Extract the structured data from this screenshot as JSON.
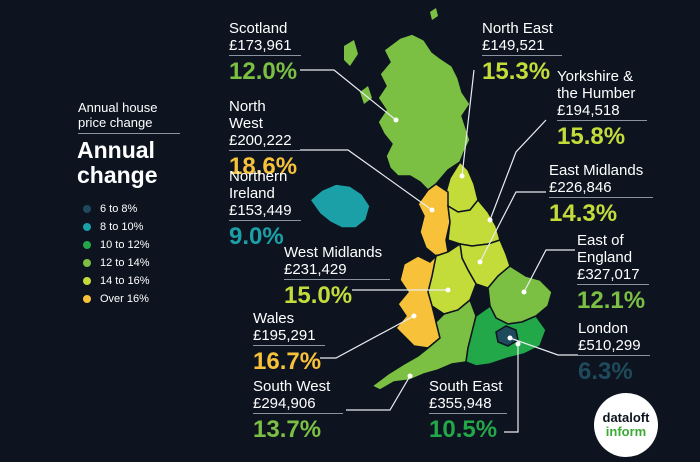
{
  "legend": {
    "subtitle": "Annual house price change",
    "title": "Annual change",
    "items": [
      {
        "label": "6 to 8%",
        "color": "#1e4a5c"
      },
      {
        "label": "8 to 10%",
        "color": "#1ba0a8"
      },
      {
        "label": "10 to 12%",
        "color": "#22a848"
      },
      {
        "label": "12 to 14%",
        "color": "#7bc043"
      },
      {
        "label": "14 to 16%",
        "color": "#c4dc3a"
      },
      {
        "label": "Over 16%",
        "color": "#f7c239"
      }
    ]
  },
  "regions": [
    {
      "key": "scotland",
      "name": "Scotland",
      "price": "£173,961",
      "change": "12.0%",
      "color": "#7bc043",
      "icon": "scotland-region"
    },
    {
      "key": "north_east",
      "name": "North East",
      "price": "£149,521",
      "change": "15.3%",
      "color": "#c4dc3a",
      "icon": "north-east-region"
    },
    {
      "key": "yorkshire",
      "name": "Yorkshire & the Humber",
      "name_line1": "Yorkshire &",
      "name_line2": "the Humber",
      "price": "£194,518",
      "change": "15.8%",
      "color": "#c4dc3a",
      "icon": "yorkshire-region"
    },
    {
      "key": "north_west",
      "name": "North West",
      "price": "£200,222",
      "change": "18.6%",
      "color": "#f7c239",
      "icon": "north-west-region"
    },
    {
      "key": "northern_ireland",
      "name": "Northern Ireland",
      "name_line1": "Northern",
      "name_line2": "Ireland",
      "price": "£153,449",
      "change": "9.0%",
      "color": "#1ba0a8",
      "icon": "northern-ireland-region"
    },
    {
      "key": "east_midlands",
      "name": "East Midlands",
      "price": "£226,846",
      "change": "14.3%",
      "color": "#c4dc3a",
      "icon": "east-midlands-region"
    },
    {
      "key": "west_midlands",
      "name": "West Midlands",
      "price": "£231,429",
      "change": "15.0%",
      "color": "#c4dc3a",
      "icon": "west-midlands-region"
    },
    {
      "key": "east_of_england",
      "name": "East of England",
      "name_line1": "East of",
      "name_line2": "England",
      "price": "£327,017",
      "change": "12.1%",
      "color": "#7bc043",
      "icon": "east-of-england-region"
    },
    {
      "key": "wales",
      "name": "Wales",
      "price": "£195,291",
      "change": "16.7%",
      "color": "#f7c239",
      "icon": "wales-region"
    },
    {
      "key": "london",
      "name": "London",
      "price": "£510,299",
      "change": "6.3%",
      "color": "#1e4a5c",
      "icon": "london-region"
    },
    {
      "key": "south_west",
      "name": "South West",
      "price": "£294,906",
      "change": "13.7%",
      "color": "#7bc043",
      "icon": "south-west-region"
    },
    {
      "key": "south_east",
      "name": "South East",
      "price": "£355,948",
      "change": "10.5%",
      "color": "#22a848",
      "icon": "south-east-region"
    }
  ],
  "logo": {
    "line1": "dataloft",
    "line2": "inform"
  }
}
